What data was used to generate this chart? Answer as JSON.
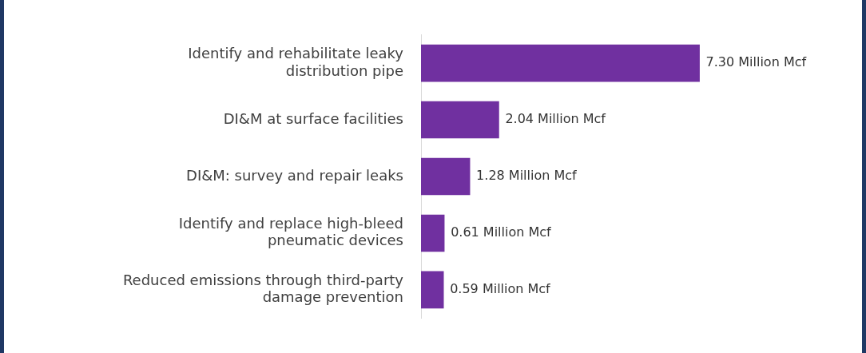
{
  "chart_data": {
    "type": "bar",
    "orientation": "horizontal",
    "categories": [
      "Identify and rehabilitate leaky\ndistribution pipe",
      "DI&M at surface facilities",
      "DI&M: survey and repair leaks",
      "Identify and replace high-bleed\npneumatic devices",
      "Reduced emissions through third-party\ndamage prevention"
    ],
    "values": [
      7.3,
      2.04,
      1.28,
      0.61,
      0.59
    ],
    "value_labels": [
      "7.30 Million Mcf",
      "2.04 Million Mcf",
      "1.28 Million Mcf",
      "0.61 Million Mcf",
      "0.59 Million Mcf"
    ],
    "color": "#7030a0",
    "tick_labels": "y"
  }
}
